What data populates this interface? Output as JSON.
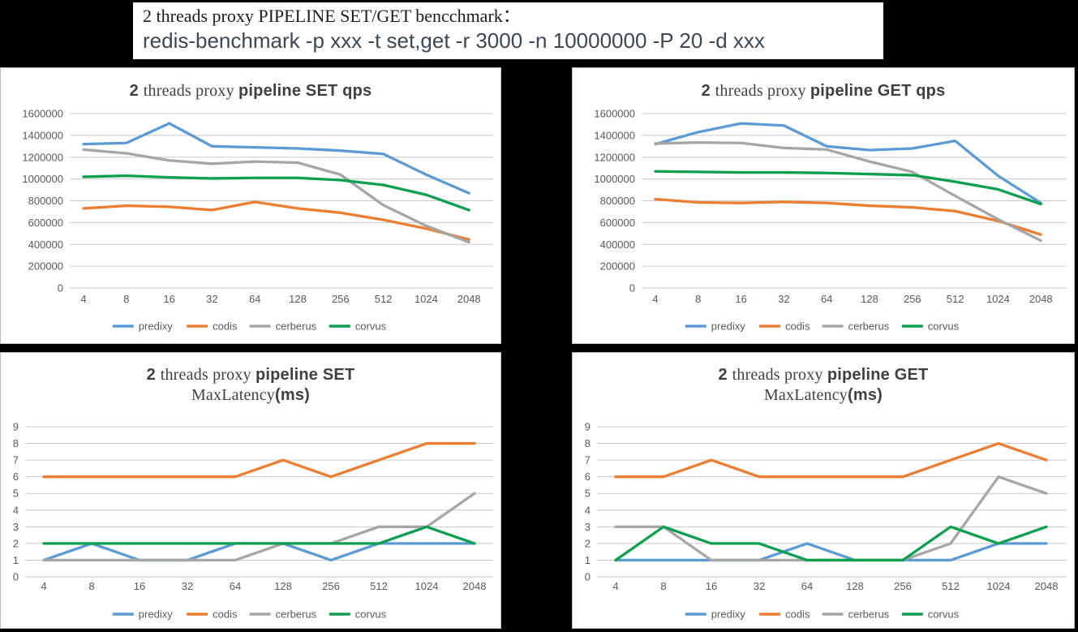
{
  "header": {
    "line1": "2 threads proxy PIPELINE SET/GET bencchmark：",
    "line2": "redis-benchmark -p xxx -t set,get -r 3000 -n 10000000 -P 20 -d xxx"
  },
  "palette": {
    "predixy": "#5B9BD5",
    "codis": "#ED7D31",
    "cerberus": "#A6A6A6",
    "corvus": "#0CA04E",
    "gridline": "#C9C9C9",
    "title_text": "#404040",
    "axis_text": "#595959"
  },
  "chart_data": [
    {
      "id": "set-qps",
      "type": "line",
      "kind": "qps",
      "title": "2 threads proxy pipeline SET qps",
      "title_parts": [
        {
          "text": "2 ",
          "style": "b"
        },
        {
          "text": "threads proxy ",
          "style": "s"
        },
        {
          "text": "pipeline SET qps",
          "style": "b"
        }
      ],
      "xlabel": "",
      "ylabel": "",
      "categories": [
        "4",
        "8",
        "16",
        "32",
        "64",
        "128",
        "256",
        "512",
        "1024",
        "2048"
      ],
      "ylim": [
        0,
        1600000
      ],
      "ystep": 200000,
      "grid": true,
      "legend_position": "bottom",
      "series": [
        {
          "name": "predixy",
          "values": [
            1320000,
            1330000,
            1510000,
            1300000,
            1290000,
            1280000,
            1260000,
            1230000,
            1040000,
            870000
          ]
        },
        {
          "name": "codis",
          "values": [
            730000,
            755000,
            745000,
            715000,
            790000,
            730000,
            690000,
            625000,
            545000,
            445000
          ]
        },
        {
          "name": "cerberus",
          "values": [
            1270000,
            1235000,
            1170000,
            1140000,
            1160000,
            1150000,
            1040000,
            760000,
            570000,
            420000
          ]
        },
        {
          "name": "corvus",
          "values": [
            1020000,
            1030000,
            1015000,
            1005000,
            1010000,
            1010000,
            990000,
            945000,
            855000,
            715000
          ]
        }
      ]
    },
    {
      "id": "get-qps",
      "type": "line",
      "kind": "qps",
      "title": "2 threads proxy pipeline GET qps",
      "title_parts": [
        {
          "text": "2 ",
          "style": "b"
        },
        {
          "text": "threads proxy ",
          "style": "s"
        },
        {
          "text": "pipeline GET qps",
          "style": "b"
        }
      ],
      "xlabel": "",
      "ylabel": "",
      "categories": [
        "4",
        "8",
        "16",
        "32",
        "64",
        "128",
        "256",
        "512",
        "1024",
        "2048"
      ],
      "ylim": [
        0,
        1600000
      ],
      "ystep": 200000,
      "grid": true,
      "legend_position": "bottom",
      "series": [
        {
          "name": "predixy",
          "values": [
            1320000,
            1430000,
            1510000,
            1490000,
            1300000,
            1265000,
            1280000,
            1350000,
            1030000,
            780000
          ]
        },
        {
          "name": "codis",
          "values": [
            815000,
            785000,
            780000,
            790000,
            780000,
            755000,
            740000,
            705000,
            615000,
            490000
          ]
        },
        {
          "name": "cerberus",
          "values": [
            1325000,
            1335000,
            1330000,
            1285000,
            1270000,
            1160000,
            1065000,
            845000,
            630000,
            435000
          ]
        },
        {
          "name": "corvus",
          "values": [
            1070000,
            1065000,
            1060000,
            1060000,
            1055000,
            1045000,
            1035000,
            975000,
            905000,
            770000
          ]
        }
      ]
    },
    {
      "id": "set-latency",
      "type": "line",
      "kind": "latency",
      "title": "2 threads proxy pipeline SET MaxLatency(ms)",
      "title_parts": [
        {
          "text": "2 ",
          "style": "b"
        },
        {
          "text": "threads proxy ",
          "style": "s"
        },
        {
          "text": "pipeline SET",
          "style": "b"
        }
      ],
      "title_line2_parts": [
        {
          "text": "MaxLatency",
          "style": "s"
        },
        {
          "text": "(ms)",
          "style": "b"
        }
      ],
      "xlabel": "",
      "ylabel": "",
      "categories": [
        "4",
        "8",
        "16",
        "32",
        "64",
        "128",
        "256",
        "512",
        "1024",
        "2048"
      ],
      "ylim": [
        0,
        9
      ],
      "ystep": 1,
      "grid": true,
      "legend_position": "bottom",
      "series": [
        {
          "name": "predixy",
          "values": [
            1,
            2,
            1,
            1,
            2,
            2,
            1,
            2,
            2,
            2
          ]
        },
        {
          "name": "codis",
          "values": [
            6,
            6,
            6,
            6,
            6,
            7,
            6,
            7,
            8,
            8
          ]
        },
        {
          "name": "cerberus",
          "values": [
            1,
            1,
            1,
            1,
            1,
            2,
            2,
            3,
            3,
            5
          ]
        },
        {
          "name": "corvus",
          "values": [
            2,
            2,
            2,
            2,
            2,
            2,
            2,
            2,
            3,
            2
          ]
        }
      ]
    },
    {
      "id": "get-latency",
      "type": "line",
      "kind": "latency",
      "title": "2 threads proxy pipeline GET MaxLatency(ms)",
      "title_parts": [
        {
          "text": "2 ",
          "style": "b"
        },
        {
          "text": "threads proxy ",
          "style": "s"
        },
        {
          "text": "pipeline GET",
          "style": "b"
        }
      ],
      "title_line2_parts": [
        {
          "text": "MaxLatency",
          "style": "s"
        },
        {
          "text": "(ms)",
          "style": "b"
        }
      ],
      "xlabel": "",
      "ylabel": "",
      "categories": [
        "4",
        "8",
        "16",
        "32",
        "64",
        "128",
        "256",
        "512",
        "1024",
        "2048"
      ],
      "ylim": [
        0,
        9
      ],
      "ystep": 1,
      "grid": true,
      "legend_position": "bottom",
      "series": [
        {
          "name": "predixy",
          "values": [
            1,
            1,
            1,
            1,
            2,
            1,
            1,
            1,
            2,
            2
          ]
        },
        {
          "name": "codis",
          "values": [
            6,
            6,
            7,
            6,
            6,
            6,
            6,
            7,
            8,
            7
          ]
        },
        {
          "name": "cerberus",
          "values": [
            3,
            3,
            1,
            1,
            1,
            1,
            1,
            2,
            6,
            5
          ]
        },
        {
          "name": "corvus",
          "values": [
            1,
            3,
            2,
            2,
            1,
            1,
            1,
            3,
            2,
            3
          ]
        }
      ]
    }
  ]
}
